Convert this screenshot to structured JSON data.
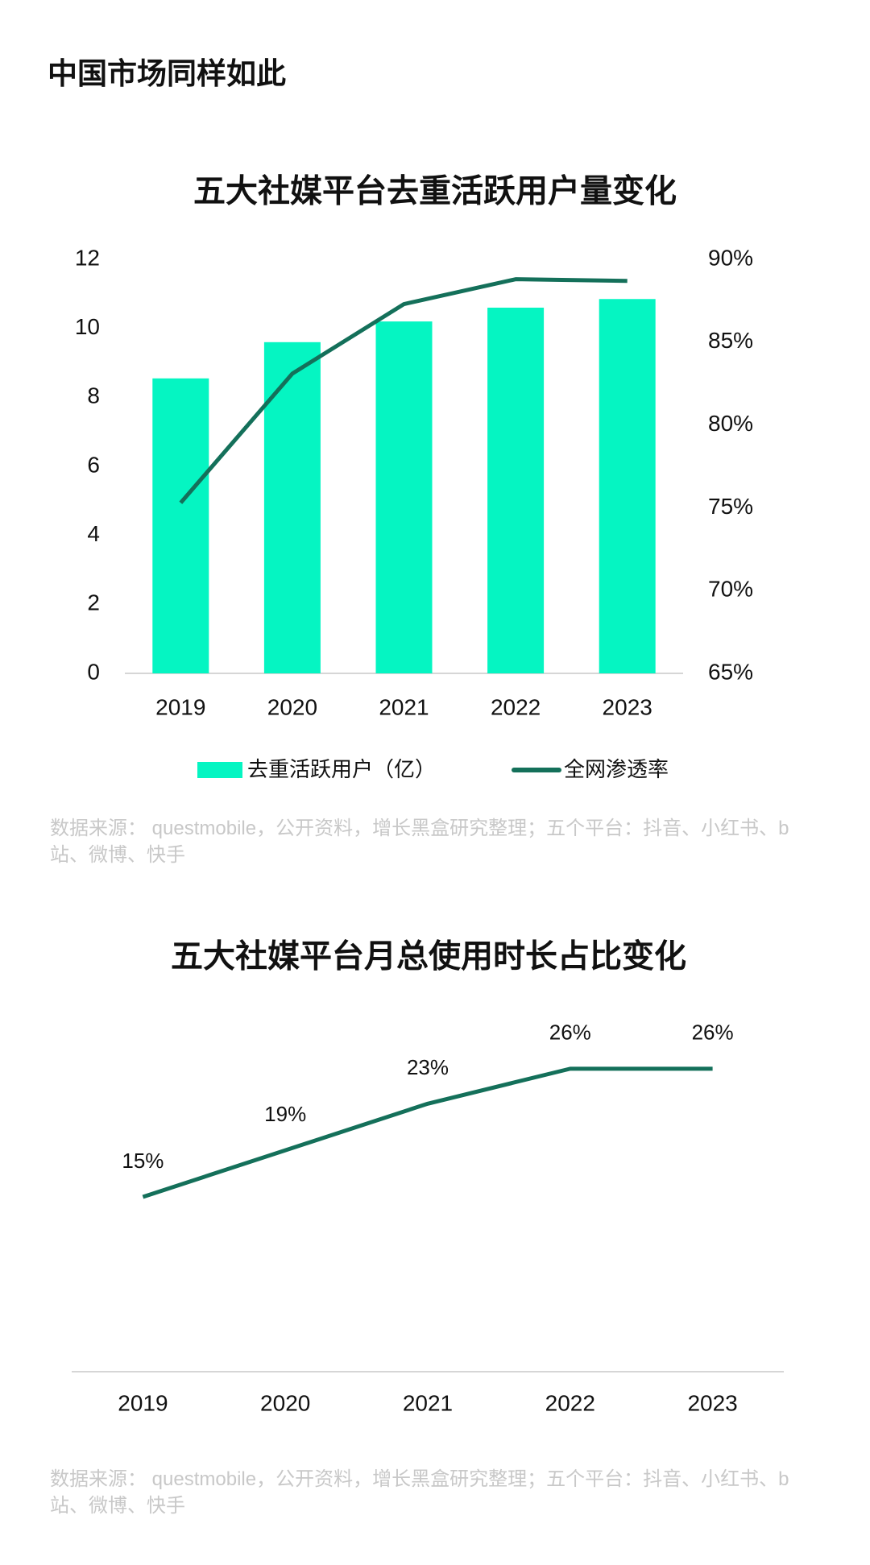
{
  "page_title": "中国市场同样如此",
  "chart_data": [
    {
      "type": "bar",
      "title": "五大社媒平台去重活跃用户量变化",
      "categories": [
        "2019",
        "2020",
        "2021",
        "2022",
        "2023"
      ],
      "series": [
        {
          "name": "去重活跃用户（亿）",
          "type": "bar",
          "color": "#05f5c2",
          "values": [
            8.55,
            9.6,
            10.2,
            10.6,
            10.85
          ]
        },
        {
          "name": "全网渗透率",
          "type": "line",
          "axis": "y2",
          "color": "#14705a",
          "values": [
            75.3,
            83.1,
            87.3,
            88.8,
            88.7
          ]
        }
      ],
      "ylim": [
        0,
        12
      ],
      "yticks": [
        0,
        2,
        4,
        6,
        8,
        10,
        12
      ],
      "y2lim": [
        65,
        90
      ],
      "y2ticks": [
        {
          "value": 65,
          "label": "65%"
        },
        {
          "value": 70,
          "label": "70%"
        },
        {
          "value": 75,
          "label": "75%"
        },
        {
          "value": 80,
          "label": "80%"
        },
        {
          "value": 85,
          "label": "85%"
        },
        {
          "value": 90,
          "label": "90%"
        }
      ],
      "legend": "bottom",
      "source": "数据来源： questmobile，公开资料，增长黑盒研究整理；五个平台：抖音、小红书、b站、微博、快手"
    },
    {
      "type": "line",
      "title": "五大社媒平台月总使用时长占比变化",
      "categories": [
        "2019",
        "2020",
        "2021",
        "2022",
        "2023"
      ],
      "values": [
        15,
        19,
        23,
        26,
        26
      ],
      "value_labels": [
        "15%",
        "19%",
        "23%",
        "26%",
        "26%"
      ],
      "color": "#14705a",
      "ylim": [
        0,
        30
      ],
      "source": "数据来源： questmobile，公开资料，增长黑盒研究整理；五个平台：抖音、小红书、b站、微博、快手"
    }
  ]
}
